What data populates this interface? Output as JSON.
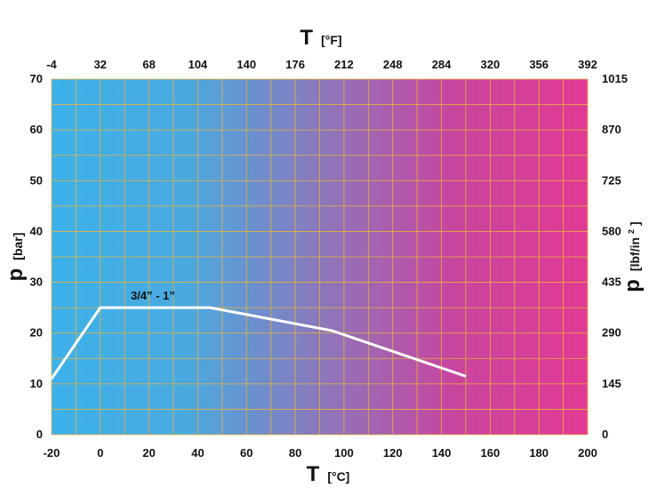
{
  "chart_data": {
    "type": "line",
    "x_bottom": {
      "symbol": "T",
      "unit": "[°C]",
      "range": [
        -20,
        200
      ],
      "ticks": [
        -20,
        0,
        20,
        40,
        60,
        80,
        100,
        120,
        140,
        160,
        180,
        200
      ]
    },
    "x_top": {
      "symbol": "T",
      "unit": "[°F]",
      "ticks": [
        "-4",
        "32",
        "68",
        "104",
        "140",
        "176",
        "212",
        "248",
        "284",
        "320",
        "356",
        "392"
      ]
    },
    "y_left": {
      "symbol": "p",
      "unit": "[bar]",
      "range": [
        0,
        70
      ],
      "ticks": [
        0,
        10,
        20,
        30,
        40,
        50,
        60,
        70
      ]
    },
    "y_right": {
      "symbol": "p",
      "unit_base": "[lbf/in",
      "unit_sup": "2",
      "unit_end": "]",
      "ticks": [
        "0",
        "145",
        "290",
        "435",
        "580",
        "725",
        "870",
        "1015"
      ]
    },
    "grid": true,
    "grid_color": "#e8b23a",
    "background_gradient": [
      "#3db1ea",
      "#4aaae0",
      "#8a78bc",
      "#c8459f",
      "#e23a94"
    ],
    "series": [
      {
        "name": "3/4” - 1”",
        "color": "#ffffff",
        "x": [
          -20,
          0,
          45,
          95,
          150
        ],
        "y": [
          11,
          25,
          25,
          20.5,
          11.5
        ]
      }
    ]
  }
}
